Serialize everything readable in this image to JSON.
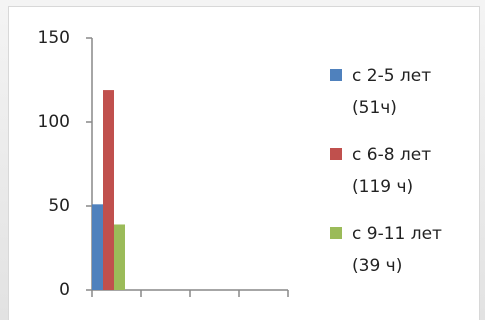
{
  "chart_data": {
    "type": "bar",
    "categories": [
      null,
      null,
      null,
      null
    ],
    "series": [
      {
        "name": "с 2-5 лет (51ч)",
        "color": "#4f81bd",
        "values": [
          51,
          null,
          null,
          null
        ]
      },
      {
        "name": "с 6-8 лет (119 ч)",
        "color": "#c0504d",
        "values": [
          119,
          null,
          null,
          null
        ]
      },
      {
        "name": "с 9-11 лет (39 ч)",
        "color": "#9bbb59",
        "values": [
          39,
          null,
          null,
          null
        ]
      }
    ],
    "ylim": [
      0,
      150
    ],
    "yticks": [
      0,
      50,
      100,
      150
    ],
    "grid": false,
    "legend": "right"
  }
}
